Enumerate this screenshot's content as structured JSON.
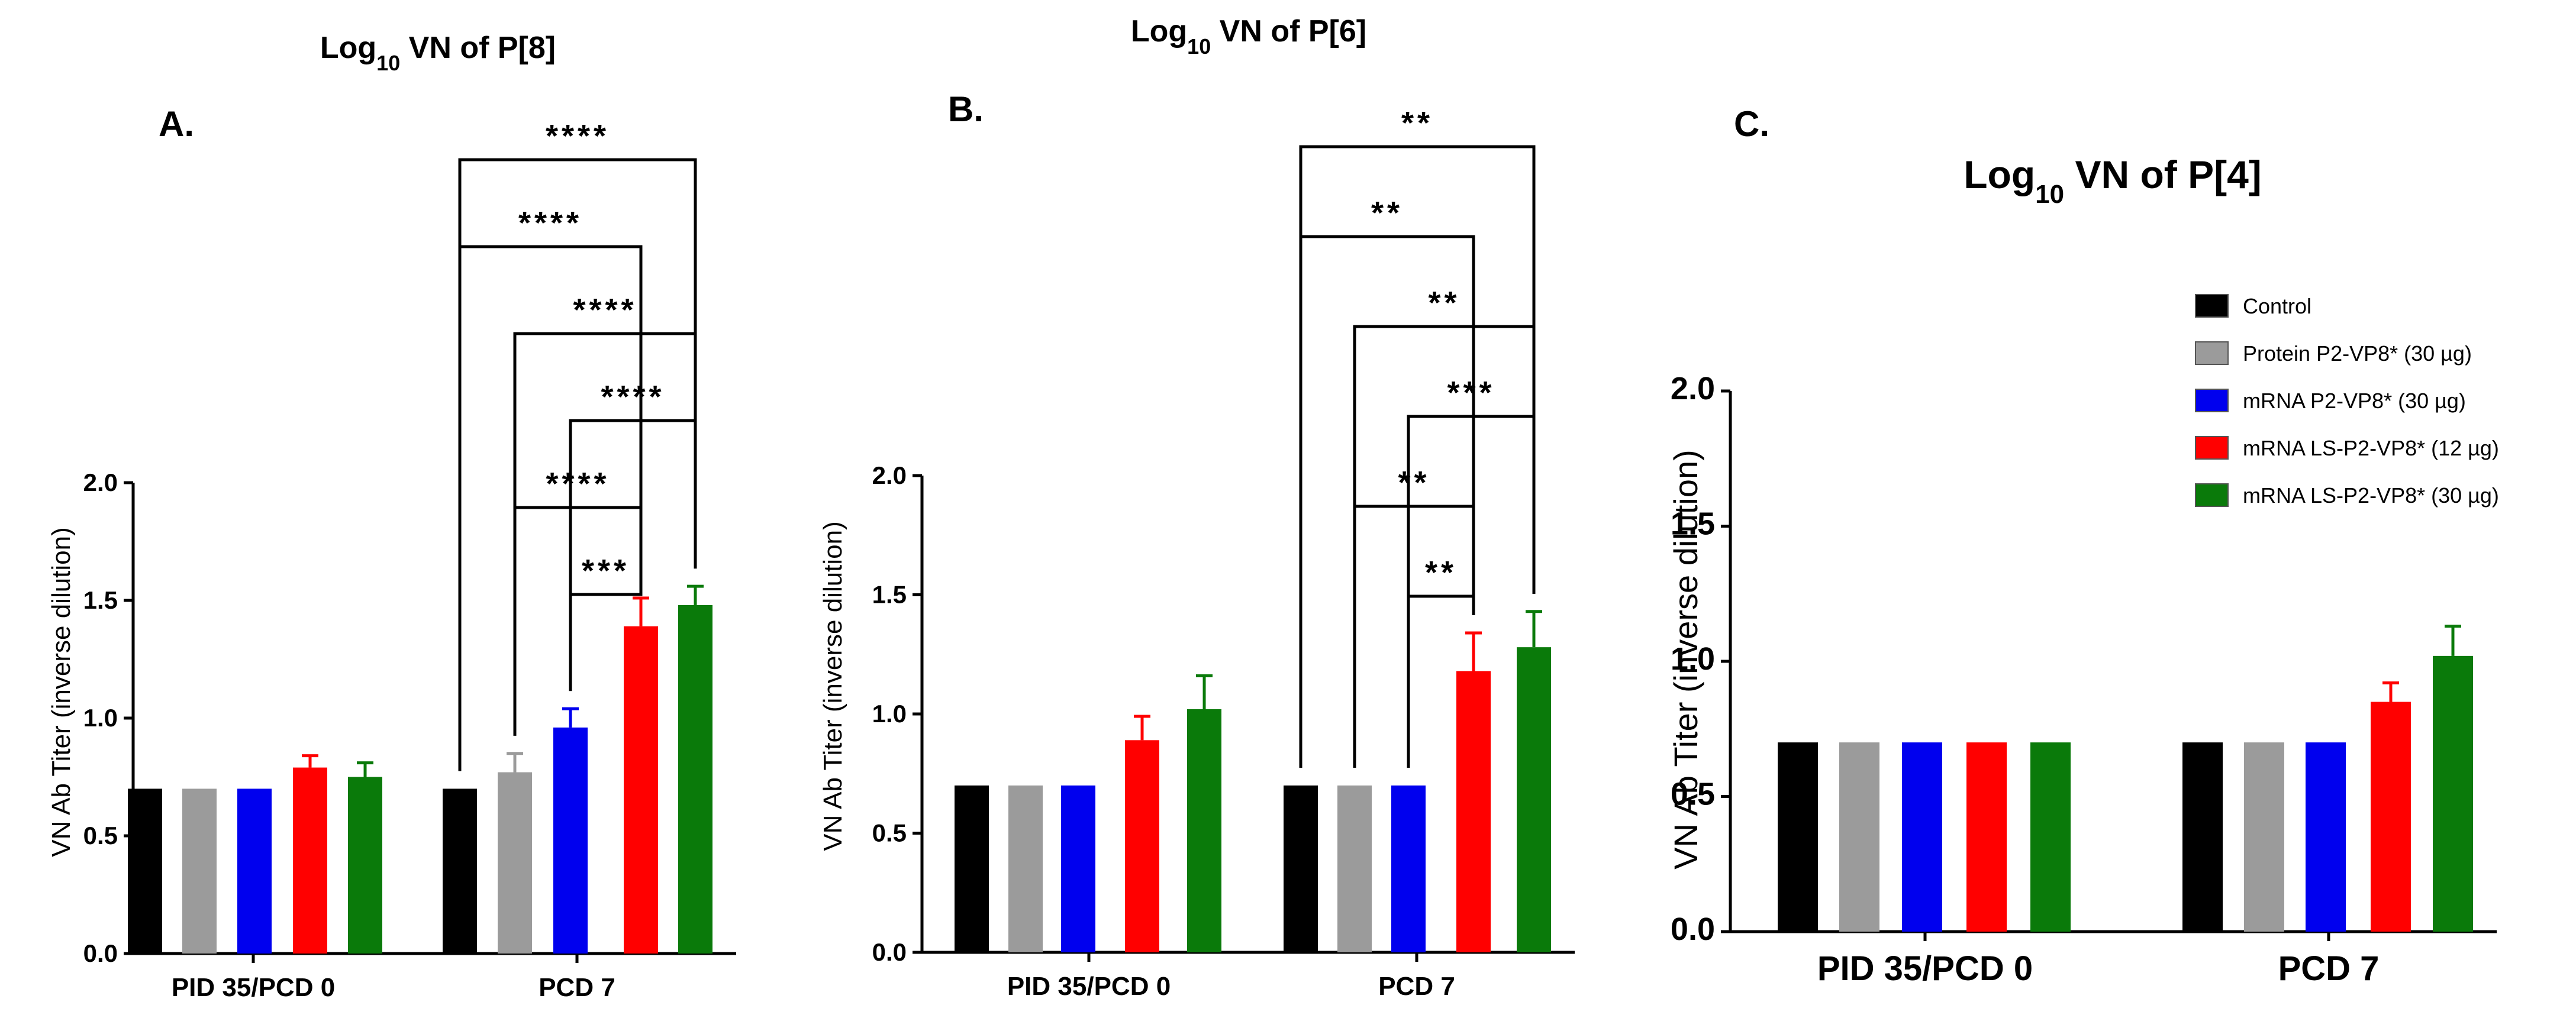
{
  "figure": {
    "y_tick_labels": [
      "0.0",
      "0.5",
      "1.0",
      "1.5",
      "2.0"
    ],
    "categories": [
      "PID 35/PCD 0",
      "PCD 7"
    ]
  },
  "legend": {
    "items": [
      {
        "label": "Control",
        "color": "#000000"
      },
      {
        "label": "Protein P2-VP8* (30 µg)",
        "color": "#9b9b9b"
      },
      {
        "label": "mRNA P2-VP8* (30 µg)",
        "color": "#0000ee"
      },
      {
        "label": "mRNA LS-P2-VP8* (12 µg)",
        "color": "#ff0000"
      },
      {
        "label": "mRNA LS-P2-VP8* (30 µg)",
        "color": "#0a7a0a"
      }
    ]
  },
  "chart_data": [
    {
      "type": "bar",
      "panel": "A.",
      "title_pre": "Log",
      "title_sub": "10",
      "title_post": " VN of P[8]",
      "ylabel": "VN Ab Titer (inverse dilution)",
      "ylim": [
        0,
        2
      ],
      "categories": [
        "PID 35/PCD 0",
        "PCD 7"
      ],
      "series": [
        {
          "name": "Control",
          "values": [
            0.7,
            0.7
          ],
          "errors": [
            0,
            0
          ]
        },
        {
          "name": "Protein P2-VP8* (30 µg)",
          "values": [
            0.7,
            0.77
          ],
          "errors": [
            0,
            0.08
          ]
        },
        {
          "name": "mRNA P2-VP8* (30 µg)",
          "values": [
            0.7,
            0.96
          ],
          "errors": [
            0,
            0.08
          ]
        },
        {
          "name": "mRNA LS-P2-VP8* (12 µg)",
          "values": [
            0.79,
            1.39
          ],
          "errors": [
            0.05,
            0.12
          ]
        },
        {
          "name": "mRNA LS-P2-VP8* (30 µg)",
          "values": [
            0.75,
            1.48
          ],
          "errors": [
            0.06,
            0.08
          ]
        }
      ],
      "significance": [
        {
          "group": 1,
          "from": 0,
          "to": 4,
          "label": "****"
        },
        {
          "group": 1,
          "from": 0,
          "to": 3,
          "label": "****"
        },
        {
          "group": 1,
          "from": 1,
          "to": 4,
          "label": "****"
        },
        {
          "group": 1,
          "from": 2,
          "to": 4,
          "label": "****"
        },
        {
          "group": 1,
          "from": 1,
          "to": 3,
          "label": "****"
        },
        {
          "group": 1,
          "from": 2,
          "to": 3,
          "label": "***"
        }
      ]
    },
    {
      "type": "bar",
      "panel": "B.",
      "title_pre": "Log",
      "title_sub": "10",
      "title_post": " VN of P[6]",
      "ylabel": "VN Ab Titer (inverse dilution)",
      "ylim": [
        0,
        2
      ],
      "categories": [
        "PID 35/PCD 0",
        "PCD 7"
      ],
      "series": [
        {
          "name": "Control",
          "values": [
            0.7,
            0.7
          ],
          "errors": [
            0,
            0
          ]
        },
        {
          "name": "Protein P2-VP8* (30 µg)",
          "values": [
            0.7,
            0.7
          ],
          "errors": [
            0,
            0
          ]
        },
        {
          "name": "mRNA P2-VP8* (30 µg)",
          "values": [
            0.7,
            0.7
          ],
          "errors": [
            0,
            0
          ]
        },
        {
          "name": "mRNA LS-P2-VP8* (12 µg)",
          "values": [
            0.89,
            1.18
          ],
          "errors": [
            0.1,
            0.16
          ]
        },
        {
          "name": "mRNA LS-P2-VP8* (30 µg)",
          "values": [
            1.02,
            1.28
          ],
          "errors": [
            0.14,
            0.15
          ]
        }
      ],
      "significance": [
        {
          "group": 1,
          "from": 0,
          "to": 4,
          "label": "**"
        },
        {
          "group": 1,
          "from": 0,
          "to": 3,
          "label": "**"
        },
        {
          "group": 1,
          "from": 1,
          "to": 4,
          "label": "**"
        },
        {
          "group": 1,
          "from": 2,
          "to": 4,
          "label": "***"
        },
        {
          "group": 1,
          "from": 1,
          "to": 3,
          "label": "**"
        },
        {
          "group": 1,
          "from": 2,
          "to": 3,
          "label": "**"
        }
      ]
    },
    {
      "type": "bar",
      "panel": "C.",
      "title_pre": "Log",
      "title_sub": "10",
      "title_post": " VN of P[4]",
      "ylabel": "VN Ab Titer (inverse dilution)",
      "ylim": [
        0,
        2
      ],
      "categories": [
        "PID 35/PCD 0",
        "PCD 7"
      ],
      "series": [
        {
          "name": "Control",
          "values": [
            0.7,
            0.7
          ],
          "errors": [
            0,
            0
          ]
        },
        {
          "name": "Protein P2-VP8* (30 µg)",
          "values": [
            0.7,
            0.7
          ],
          "errors": [
            0,
            0
          ]
        },
        {
          "name": "mRNA P2-VP8* (30 µg)",
          "values": [
            0.7,
            0.7
          ],
          "errors": [
            0,
            0
          ]
        },
        {
          "name": "mRNA LS-P2-VP8* (12 µg)",
          "values": [
            0.7,
            0.85
          ],
          "errors": [
            0,
            0.07
          ]
        },
        {
          "name": "mRNA LS-P2-VP8* (30 µg)",
          "values": [
            0.7,
            1.02
          ],
          "errors": [
            0,
            0.11
          ]
        }
      ],
      "significance": []
    }
  ]
}
